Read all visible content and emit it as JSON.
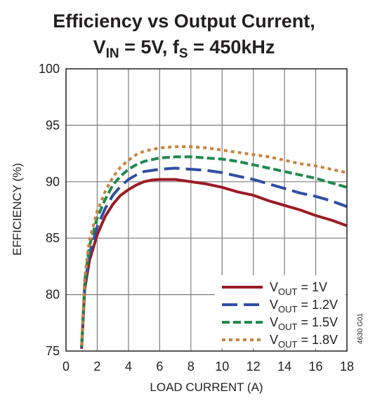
{
  "chart_data": {
    "type": "line",
    "title": "Efficiency vs Output Current,",
    "subtitle": {
      "v_main": "V",
      "v_sub": "IN",
      "v_rest": " = 5V, f",
      "f_sub": "S",
      "f_rest": " = 450kHz"
    },
    "xlabel": "LOAD CURRENT (A)",
    "ylabel": "EFFICIENCY (%)",
    "xlim": [
      0,
      18
    ],
    "ylim": [
      75,
      100
    ],
    "x_ticks": [
      "0",
      "2",
      "4",
      "6",
      "8",
      "10",
      "12",
      "14",
      "16",
      "18"
    ],
    "y_ticks": [
      "75",
      "80",
      "85",
      "90",
      "95",
      "100"
    ],
    "grid": true,
    "legend_position": "bottom-right",
    "side_note": "4630 G01",
    "series": [
      {
        "name": "VOUT = 1V",
        "legend": {
          "main": "V",
          "sub": "OUT",
          "rest": " = 1V"
        },
        "color": "#9b1c24",
        "dash": "solid",
        "points": [
          [
            1.0,
            75.2
          ],
          [
            1.2,
            80.5
          ],
          [
            1.5,
            83.0
          ],
          [
            2,
            85.3
          ],
          [
            2.5,
            86.9
          ],
          [
            3,
            88.0
          ],
          [
            3.5,
            88.8
          ],
          [
            4,
            89.3
          ],
          [
            4.5,
            89.7
          ],
          [
            5,
            90.0
          ],
          [
            5.5,
            90.15
          ],
          [
            6,
            90.2
          ],
          [
            7,
            90.2
          ],
          [
            8,
            90.0
          ],
          [
            9,
            89.8
          ],
          [
            10,
            89.5
          ],
          [
            11,
            89.1
          ],
          [
            12,
            88.8
          ],
          [
            13,
            88.3
          ],
          [
            14,
            87.9
          ],
          [
            15,
            87.5
          ],
          [
            16,
            87.0
          ],
          [
            17,
            86.6
          ],
          [
            18,
            86.1
          ]
        ]
      },
      {
        "name": "VOUT = 1.2V",
        "legend": {
          "main": "V",
          "sub": "OUT",
          "rest": " = 1.2V"
        },
        "color": "#2e4fa3",
        "dash": "long-dash",
        "points": [
          [
            1.0,
            75.3
          ],
          [
            1.2,
            80.8
          ],
          [
            1.5,
            83.6
          ],
          [
            2,
            86.0
          ],
          [
            2.5,
            87.6
          ],
          [
            3,
            88.8
          ],
          [
            3.5,
            89.6
          ],
          [
            4,
            90.2
          ],
          [
            4.5,
            90.6
          ],
          [
            5,
            90.9
          ],
          [
            6,
            91.1
          ],
          [
            7,
            91.2
          ],
          [
            8,
            91.1
          ],
          [
            9,
            91.0
          ],
          [
            10,
            90.8
          ],
          [
            11,
            90.5
          ],
          [
            12,
            90.2
          ],
          [
            13,
            89.8
          ],
          [
            14,
            89.4
          ],
          [
            15,
            89.0
          ],
          [
            16,
            88.7
          ],
          [
            17,
            88.3
          ],
          [
            18,
            87.8
          ]
        ]
      },
      {
        "name": "VOUT = 1.5V",
        "legend": {
          "main": "V",
          "sub": "OUT",
          "rest": " = 1.5V"
        },
        "color": "#1f8a4c",
        "dash": "dash",
        "points": [
          [
            1.0,
            75.4
          ],
          [
            1.2,
            81.2
          ],
          [
            1.5,
            84.3
          ],
          [
            2,
            86.8
          ],
          [
            2.5,
            88.4
          ],
          [
            3,
            89.7
          ],
          [
            3.5,
            90.5
          ],
          [
            4,
            91.1
          ],
          [
            4.5,
            91.5
          ],
          [
            5,
            91.8
          ],
          [
            6,
            92.1
          ],
          [
            7,
            92.2
          ],
          [
            8,
            92.2
          ],
          [
            9,
            92.1
          ],
          [
            10,
            92.0
          ],
          [
            11,
            91.8
          ],
          [
            12,
            91.5
          ],
          [
            13,
            91.2
          ],
          [
            14,
            90.9
          ],
          [
            15,
            90.6
          ],
          [
            16,
            90.3
          ],
          [
            17,
            89.9
          ],
          [
            18,
            89.5
          ]
        ]
      },
      {
        "name": "VOUT = 1.8V",
        "legend": {
          "main": "V",
          "sub": "OUT",
          "rest": " = 1.8V"
        },
        "color": "#c8843f",
        "dash": "dot",
        "points": [
          [
            1.0,
            75.5
          ],
          [
            1.2,
            81.5
          ],
          [
            1.5,
            84.8
          ],
          [
            2,
            87.4
          ],
          [
            2.5,
            89.1
          ],
          [
            3,
            90.4
          ],
          [
            3.5,
            91.3
          ],
          [
            4,
            91.9
          ],
          [
            4.5,
            92.4
          ],
          [
            5,
            92.7
          ],
          [
            6,
            93.0
          ],
          [
            7,
            93.1
          ],
          [
            8,
            93.1
          ],
          [
            9,
            93.0
          ],
          [
            10,
            92.8
          ],
          [
            11,
            92.6
          ],
          [
            12,
            92.4
          ],
          [
            13,
            92.2
          ],
          [
            14,
            91.9
          ],
          [
            15,
            91.6
          ],
          [
            16,
            91.4
          ],
          [
            17,
            91.1
          ],
          [
            18,
            90.8
          ]
        ]
      }
    ]
  }
}
